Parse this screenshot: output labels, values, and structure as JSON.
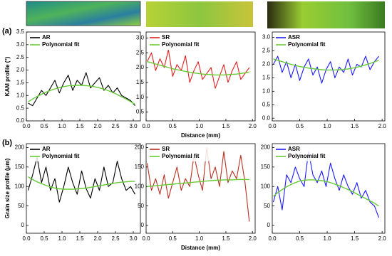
{
  "chart_data": [
    {
      "type": "line",
      "panel_label": "(a)",
      "ylabel": "KAM profile (°)",
      "legend": "upper left",
      "x": [
        0.05,
        0.175,
        0.3,
        0.425,
        0.55,
        0.675,
        0.8,
        0.925,
        1.05,
        1.175,
        1.3,
        1.425,
        1.55,
        1.675,
        1.8,
        1.925,
        2.05,
        2.175,
        2.3,
        2.425,
        2.55,
        2.675,
        2.8,
        2.925,
        3.05
      ],
      "series": [
        {
          "name": "AR",
          "color": "#000000",
          "values": [
            0.7,
            0.6,
            0.9,
            1.2,
            1.0,
            1.3,
            1.6,
            1.1,
            1.5,
            1.8,
            1.2,
            1.6,
            1.4,
            1.9,
            1.3,
            1.5,
            1.7,
            1.2,
            1.4,
            1.1,
            1.3,
            1.0,
            0.9,
            0.8,
            0.6
          ]
        },
        {
          "name": "Polynomial fit",
          "color": "#66cc33",
          "values": [
            0.75,
            0.86,
            0.96,
            1.05,
            1.13,
            1.2,
            1.26,
            1.31,
            1.35,
            1.38,
            1.39,
            1.4,
            1.4,
            1.39,
            1.37,
            1.34,
            1.3,
            1.25,
            1.19,
            1.12,
            1.04,
            0.95,
            0.86,
            0.76,
            0.65
          ]
        }
      ],
      "xlim": [
        0,
        3.2
      ],
      "ylim": [
        0,
        3.5
      ],
      "xticks": [
        {
          "value": 0,
          "label": "0.0"
        },
        {
          "value": 0.5,
          "label": "0.5"
        },
        {
          "value": 1,
          "label": "1.0"
        },
        {
          "value": 1.5,
          "label": "1.5"
        },
        {
          "value": 2,
          "label": "2.0"
        },
        {
          "value": 2.5,
          "label": "2.5"
        },
        {
          "value": 3,
          "label": "3.0"
        }
      ],
      "yticks": [
        {
          "value": 0,
          "label": "0.0"
        },
        {
          "value": 0.5,
          "label": "0.5"
        },
        {
          "value": 1,
          "label": "1.0"
        },
        {
          "value": 1.5,
          "label": "1.5"
        },
        {
          "value": 2,
          "label": "2.0"
        },
        {
          "value": 2.5,
          "label": "2.5"
        },
        {
          "value": 3,
          "label": "3.0"
        },
        {
          "value": 3.5,
          "label": "3.5"
        }
      ]
    },
    {
      "type": "line",
      "xlabel": "Distance (mm)",
      "legend": "upper left",
      "x": [
        0.02,
        0.1,
        0.18,
        0.26,
        0.34,
        0.42,
        0.5,
        0.58,
        0.66,
        0.74,
        0.82,
        0.9,
        0.98,
        1.06,
        1.14,
        1.22,
        1.3,
        1.38,
        1.46,
        1.54,
        1.62,
        1.7,
        1.78,
        1.86,
        1.94
      ],
      "series": [
        {
          "name": "SR",
          "color": "#e02020",
          "values": [
            2.2,
            2.5,
            1.9,
            2.3,
            2.0,
            2.6,
            1.7,
            2.1,
            1.9,
            2.4,
            1.5,
            1.9,
            2.2,
            1.6,
            1.8,
            2.0,
            1.3,
            1.7,
            2.1,
            1.5,
            1.9,
            2.2,
            1.6,
            1.8,
            2.0
          ]
        },
        {
          "name": "Polynomial fit",
          "color": "#66cc33",
          "values": [
            2.2,
            2.16,
            2.12,
            2.08,
            2.04,
            2.0,
            1.96,
            1.93,
            1.9,
            1.87,
            1.84,
            1.82,
            1.8,
            1.78,
            1.77,
            1.76,
            1.75,
            1.75,
            1.75,
            1.76,
            1.77,
            1.78,
            1.8,
            1.82,
            1.85
          ]
        }
      ],
      "xlim": [
        0,
        2.05
      ],
      "ylim": [
        0.2,
        3.2
      ],
      "xticks": [
        {
          "value": 0,
          "label": "0.0"
        },
        {
          "value": 0.5,
          "label": "0.5"
        },
        {
          "value": 1,
          "label": "1.0"
        },
        {
          "value": 1.5,
          "label": "1.5"
        },
        {
          "value": 2,
          "label": "2.0"
        }
      ],
      "yticks": [
        {
          "value": 0.5,
          "label": "0.5"
        },
        {
          "value": 1,
          "label": "1.0"
        },
        {
          "value": 1.5,
          "label": "1.5"
        },
        {
          "value": 2,
          "label": "2.0"
        },
        {
          "value": 2.5,
          "label": "2.5"
        },
        {
          "value": 3,
          "label": "3.0"
        }
      ]
    },
    {
      "type": "line",
      "legend": "upper left",
      "x": [
        0.02,
        0.1,
        0.18,
        0.26,
        0.34,
        0.42,
        0.5,
        0.58,
        0.66,
        0.74,
        0.82,
        0.9,
        0.98,
        1.06,
        1.14,
        1.22,
        1.3,
        1.38,
        1.46,
        1.54,
        1.62,
        1.7,
        1.78,
        1.86,
        1.94
      ],
      "series": [
        {
          "name": "ASR",
          "color": "#1a1aff",
          "values": [
            2.0,
            2.3,
            1.7,
            2.1,
            1.5,
            2.0,
            1.4,
            1.9,
            2.2,
            1.6,
            1.9,
            1.3,
            1.8,
            2.1,
            1.5,
            1.9,
            1.7,
            2.2,
            1.6,
            2.0,
            1.9,
            2.3,
            1.8,
            2.1,
            2.3
          ]
        },
        {
          "name": "Polynomial fit",
          "color": "#66cc33",
          "values": [
            2.2,
            2.15,
            2.1,
            2.05,
            2.0,
            1.96,
            1.92,
            1.89,
            1.86,
            1.84,
            1.82,
            1.8,
            1.79,
            1.79,
            1.79,
            1.8,
            1.81,
            1.83,
            1.86,
            1.89,
            1.93,
            1.98,
            2.03,
            2.09,
            2.15
          ]
        }
      ],
      "xlim": [
        0,
        2.05
      ],
      "ylim": [
        -0.1,
        3.2
      ],
      "xticks": [
        {
          "value": 0,
          "label": "0.0"
        },
        {
          "value": 0.5,
          "label": "0.5"
        },
        {
          "value": 1,
          "label": "1.0"
        },
        {
          "value": 1.5,
          "label": "1.5"
        },
        {
          "value": 2,
          "label": "2.0"
        }
      ],
      "yticks": [
        {
          "value": 0,
          "label": "0.0"
        },
        {
          "value": 0.5,
          "label": "0.5"
        },
        {
          "value": 1,
          "label": "1.0"
        },
        {
          "value": 1.5,
          "label": "1.5"
        },
        {
          "value": 2,
          "label": "2.0"
        },
        {
          "value": 2.5,
          "label": "2.5"
        },
        {
          "value": 3,
          "label": "3.0"
        }
      ]
    },
    {
      "type": "line",
      "panel_label": "(b)",
      "ylabel": "Grain size profile (μm)",
      "legend": "upper left",
      "x": [
        0.05,
        0.175,
        0.3,
        0.425,
        0.55,
        0.675,
        0.8,
        0.925,
        1.05,
        1.175,
        1.3,
        1.425,
        1.55,
        1.675,
        1.8,
        1.925,
        2.05,
        2.175,
        2.3,
        2.425,
        2.55,
        2.675,
        2.8,
        2.925,
        3.05
      ],
      "series": [
        {
          "name": "AR",
          "color": "#000000",
          "values": [
            90,
            130,
            175,
            110,
            150,
            90,
            120,
            60,
            100,
            150,
            110,
            80,
            140,
            95,
            70,
            120,
            90,
            150,
            100,
            110,
            165,
            120,
            90,
            100,
            80
          ]
        },
        {
          "name": "Polynomial fit",
          "color": "#66cc33",
          "values": [
            125,
            118,
            112,
            107,
            103,
            99,
            96,
            94,
            93,
            93,
            93,
            94,
            95,
            96,
            98,
            100,
            102,
            104,
            106,
            108,
            110,
            111,
            112,
            113,
            113
          ]
        }
      ],
      "xlim": [
        0,
        3.2
      ],
      "ylim": [
        -20,
        210
      ],
      "xticks": [
        {
          "value": 0,
          "label": "0.0"
        },
        {
          "value": 0.5,
          "label": "0.5"
        },
        {
          "value": 1,
          "label": "1.0"
        },
        {
          "value": 1.5,
          "label": "1.5"
        },
        {
          "value": 2,
          "label": "2.0"
        },
        {
          "value": 2.5,
          "label": "2.5"
        },
        {
          "value": 3,
          "label": "3.0"
        }
      ],
      "yticks": [
        0,
        50,
        100,
        150,
        200
      ]
    },
    {
      "type": "line",
      "xlabel": "Distance (mm)",
      "legend": "upper left",
      "x": [
        0.02,
        0.1,
        0.18,
        0.26,
        0.34,
        0.42,
        0.5,
        0.58,
        0.66,
        0.74,
        0.82,
        0.9,
        0.98,
        1.06,
        1.14,
        1.22,
        1.3,
        1.38,
        1.46,
        1.54,
        1.62,
        1.7,
        1.78,
        1.86,
        1.94
      ],
      "series": [
        {
          "name": "SR",
          "color": "#b83020",
          "values": [
            160,
            90,
            120,
            80,
            130,
            70,
            110,
            150,
            90,
            120,
            100,
            180,
            130,
            90,
            200,
            120,
            150,
            100,
            190,
            110,
            140,
            120,
            180,
            110,
            10
          ]
        },
        {
          "name": "Polynomial fit",
          "color": "#66cc33",
          "values": [
            100,
            101,
            102,
            103,
            104,
            105,
            106,
            107,
            108,
            109,
            110,
            111,
            112,
            113,
            114,
            115,
            116,
            116,
            117,
            117,
            117,
            118,
            118,
            118,
            118
          ]
        }
      ],
      "xlim": [
        0,
        2.05
      ],
      "ylim": [
        -20,
        210
      ],
      "xticks": [
        {
          "value": 0,
          "label": "0.0"
        },
        {
          "value": 0.5,
          "label": "0.5"
        },
        {
          "value": 1,
          "label": "1.0"
        },
        {
          "value": 1.5,
          "label": "1.5"
        },
        {
          "value": 2,
          "label": "2.0"
        }
      ],
      "yticks": [
        0,
        50,
        100,
        150,
        200
      ]
    },
    {
      "type": "line",
      "legend": "upper left",
      "x": [
        0.02,
        0.1,
        0.18,
        0.26,
        0.34,
        0.42,
        0.5,
        0.58,
        0.66,
        0.74,
        0.82,
        0.9,
        0.98,
        1.06,
        1.14,
        1.22,
        1.3,
        1.38,
        1.46,
        1.54,
        1.62,
        1.7,
        1.78,
        1.86,
        1.94
      ],
      "series": [
        {
          "name": "ASR",
          "color": "#1a1aff",
          "values": [
            60,
            100,
            40,
            130,
            110,
            150,
            120,
            100,
            190,
            130,
            110,
            140,
            100,
            160,
            120,
            90,
            130,
            100,
            80,
            110,
            70,
            90,
            60,
            50,
            20
          ]
        },
        {
          "name": "Polynomial fit",
          "color": "#66cc33",
          "values": [
            75,
            84,
            92,
            99,
            105,
            110,
            114,
            116,
            117,
            117,
            116,
            115,
            113,
            110,
            106,
            102,
            97,
            92,
            87,
            81,
            75,
            69,
            63,
            57,
            50
          ]
        }
      ],
      "xlim": [
        0,
        2.05
      ],
      "ylim": [
        -20,
        210
      ],
      "xticks": [
        {
          "value": 0,
          "label": "0.0"
        },
        {
          "value": 0.5,
          "label": "0.5"
        },
        {
          "value": 1,
          "label": "1.0"
        },
        {
          "value": 1.5,
          "label": "1.5"
        },
        {
          "value": 2,
          "label": "2.0"
        }
      ],
      "yticks": [
        0,
        50,
        100,
        150,
        200
      ]
    }
  ]
}
